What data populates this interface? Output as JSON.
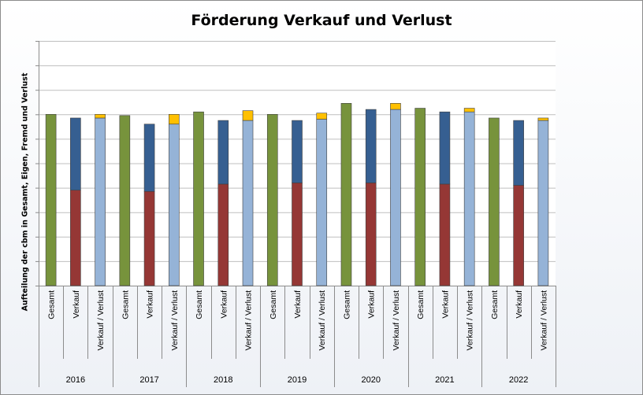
{
  "chart_data": {
    "type": "bar",
    "stacked": true,
    "title": "Förderung Verkauf und Verlust",
    "xlabel": "",
    "ylabel": "Aufteilung der cbm in Gesamt, Eigen, Fremd und Verlust",
    "ylim": [
      0,
      10
    ],
    "grid": true,
    "legend": "none",
    "y_tick_labels": "none",
    "x_groups": [
      "2016",
      "2017",
      "2018",
      "2019",
      "2020",
      "2021",
      "2022"
    ],
    "x_subcategories": [
      "Gesamt",
      "Verkauf",
      "Verkauf / Verlust"
    ],
    "colors": {
      "gesamt": "#77933c",
      "eigen": "#953735",
      "fremd": "#365f91",
      "verkauf_verlust": "#95b3d7",
      "verlust": "#ffc000"
    },
    "bars": [
      {
        "group": "2016",
        "category": "Gesamt",
        "segments": [
          {
            "color": "#77933c",
            "value": 7.0
          }
        ]
      },
      {
        "group": "2016",
        "category": "Verkauf",
        "segments": [
          {
            "color": "#953735",
            "value": 3.9
          },
          {
            "color": "#365f91",
            "value": 2.95
          }
        ]
      },
      {
        "group": "2016",
        "category": "Verkauf / Verlust",
        "segments": [
          {
            "color": "#95b3d7",
            "value": 6.85
          },
          {
            "color": "#ffc000",
            "value": 0.15
          }
        ]
      },
      {
        "group": "2017",
        "category": "Gesamt",
        "segments": [
          {
            "color": "#77933c",
            "value": 6.95
          }
        ]
      },
      {
        "group": "2017",
        "category": "Verkauf",
        "segments": [
          {
            "color": "#953735",
            "value": 3.85
          },
          {
            "color": "#365f91",
            "value": 2.75
          }
        ]
      },
      {
        "group": "2017",
        "category": "Verkauf / Verlust",
        "segments": [
          {
            "color": "#95b3d7",
            "value": 6.6
          },
          {
            "color": "#ffc000",
            "value": 0.4
          }
        ]
      },
      {
        "group": "2018",
        "category": "Gesamt",
        "segments": [
          {
            "color": "#77933c",
            "value": 7.1
          }
        ]
      },
      {
        "group": "2018",
        "category": "Verkauf",
        "segments": [
          {
            "color": "#953735",
            "value": 4.15
          },
          {
            "color": "#365f91",
            "value": 2.6
          }
        ]
      },
      {
        "group": "2018",
        "category": "Verkauf / Verlust",
        "segments": [
          {
            "color": "#95b3d7",
            "value": 6.75
          },
          {
            "color": "#ffc000",
            "value": 0.4
          }
        ]
      },
      {
        "group": "2019",
        "category": "Gesamt",
        "segments": [
          {
            "color": "#77933c",
            "value": 7.0
          }
        ]
      },
      {
        "group": "2019",
        "category": "Verkauf",
        "segments": [
          {
            "color": "#953735",
            "value": 4.2
          },
          {
            "color": "#365f91",
            "value": 2.55
          }
        ]
      },
      {
        "group": "2019",
        "category": "Verkauf / Verlust",
        "segments": [
          {
            "color": "#95b3d7",
            "value": 6.8
          },
          {
            "color": "#ffc000",
            "value": 0.25
          }
        ]
      },
      {
        "group": "2020",
        "category": "Gesamt",
        "segments": [
          {
            "color": "#77933c",
            "value": 7.45
          }
        ]
      },
      {
        "group": "2020",
        "category": "Verkauf",
        "segments": [
          {
            "color": "#953735",
            "value": 4.2
          },
          {
            "color": "#365f91",
            "value": 3.0
          }
        ]
      },
      {
        "group": "2020",
        "category": "Verkauf / Verlust",
        "segments": [
          {
            "color": "#95b3d7",
            "value": 7.2
          },
          {
            "color": "#ffc000",
            "value": 0.25
          }
        ]
      },
      {
        "group": "2021",
        "category": "Gesamt",
        "segments": [
          {
            "color": "#77933c",
            "value": 7.25
          }
        ]
      },
      {
        "group": "2021",
        "category": "Verkauf",
        "segments": [
          {
            "color": "#953735",
            "value": 4.15
          },
          {
            "color": "#365f91",
            "value": 2.95
          }
        ]
      },
      {
        "group": "2021",
        "category": "Verkauf / Verlust",
        "segments": [
          {
            "color": "#95b3d7",
            "value": 7.1
          },
          {
            "color": "#ffc000",
            "value": 0.15
          }
        ]
      },
      {
        "group": "2022",
        "category": "Gesamt",
        "segments": [
          {
            "color": "#77933c",
            "value": 6.85
          }
        ]
      },
      {
        "group": "2022",
        "category": "Verkauf",
        "segments": [
          {
            "color": "#953735",
            "value": 4.1
          },
          {
            "color": "#365f91",
            "value": 2.65
          }
        ]
      },
      {
        "group": "2022",
        "category": "Verkauf / Verlust",
        "segments": [
          {
            "color": "#95b3d7",
            "value": 6.75
          },
          {
            "color": "#ffc000",
            "value": 0.1
          }
        ]
      }
    ]
  }
}
